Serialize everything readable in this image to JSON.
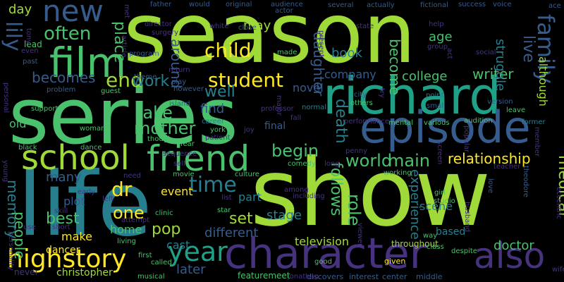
{
  "background": "#000000",
  "palette": {
    "yellow": "#fde725",
    "lime": "#a0da39",
    "green": "#4ac16d",
    "teal": "#1fa187",
    "cyan": "#277f8e",
    "blue": "#365c8d",
    "indigo": "#46327e",
    "purple": "#440154"
  },
  "words": [
    {
      "text": "season",
      "color": "#a0da39"
    },
    {
      "text": "show",
      "color": "#a0da39"
    },
    {
      "text": "series",
      "color": "#4ac16d"
    },
    {
      "text": "life",
      "color": "#277f8e"
    },
    {
      "text": "richard",
      "color": "#1fa187"
    },
    {
      "text": "episode",
      "color": "#365c8d"
    },
    {
      "text": "character",
      "color": "#46327e"
    },
    {
      "text": "school",
      "color": "#a0da39"
    },
    {
      "text": "friend",
      "color": "#4ac16d"
    },
    {
      "text": "film",
      "color": "#4ac16d"
    },
    {
      "text": "new",
      "color": "#365c8d"
    },
    {
      "text": "also",
      "color": "#46327e"
    },
    {
      "text": "family",
      "color": "#365c8d"
    },
    {
      "text": "highstory",
      "color": "#fde725"
    },
    {
      "text": "year",
      "color": "#1fa187"
    },
    {
      "text": "student",
      "color": "#fde725"
    },
    {
      "text": "end",
      "color": "#a0da39"
    },
    {
      "text": "often",
      "color": "#4ac16d"
    },
    {
      "text": "child",
      "color": "#fde725"
    },
    {
      "text": "time",
      "color": "#277f8e"
    },
    {
      "text": "dr",
      "color": "#fde725"
    },
    {
      "text": "mother",
      "color": "#4ac16d"
    },
    {
      "text": "work",
      "color": "#277f8e"
    },
    {
      "text": "becomes",
      "color": "#365c8d"
    },
    {
      "text": "take",
      "color": "#4ac16d"
    },
    {
      "text": "begin",
      "color": "#4ac16d"
    },
    {
      "text": "world",
      "color": "#4ac16d"
    },
    {
      "text": "main",
      "color": "#4ac16d"
    },
    {
      "text": "relationship",
      "color": "#fde725"
    },
    {
      "text": "writer",
      "color": "#4ac16d"
    },
    {
      "text": "doctor",
      "color": "#4ac16d"
    },
    {
      "text": "medical",
      "color": "#a0da39"
    },
    {
      "text": "lily",
      "color": "#365c8d"
    },
    {
      "text": "place",
      "color": "#4ac16d"
    },
    {
      "text": "around",
      "color": "#365c8d"
    },
    {
      "text": "daughter",
      "color": "#365c8d"
    },
    {
      "text": "become",
      "color": "#4ac16d"
    },
    {
      "text": "death",
      "color": "#277f8e"
    },
    {
      "text": "follows",
      "color": "#4ac16d"
    },
    {
      "text": "role",
      "color": "#4ac16d"
    },
    {
      "text": "memory",
      "color": "#277f8e"
    },
    {
      "text": "people",
      "color": "#4ac16d"
    },
    {
      "text": "best",
      "color": "#4ac16d"
    },
    {
      "text": "one",
      "color": "#fde725"
    },
    {
      "text": "pop",
      "color": "#a0da39"
    },
    {
      "text": "set",
      "color": "#a0da39"
    },
    {
      "text": "later",
      "color": "#365c8d"
    },
    {
      "text": "christopher",
      "color": "#a0da39"
    },
    {
      "text": "television",
      "color": "#a0da39"
    },
    {
      "text": "live",
      "color": "#365c8d"
    },
    {
      "text": "struggle",
      "color": "#277f8e"
    },
    {
      "text": "company",
      "color": "#365c8d"
    },
    {
      "text": "college",
      "color": "#4ac16d"
    },
    {
      "text": "book",
      "color": "#277f8e"
    },
    {
      "text": "age",
      "color": "#4ac16d"
    },
    {
      "text": "day",
      "color": "#a0da39"
    },
    {
      "text": "may",
      "color": "#a0da39"
    },
    {
      "text": "well",
      "color": "#277f8e"
    },
    {
      "text": "find",
      "color": "#365c8d"
    },
    {
      "text": "novel",
      "color": "#365c8d"
    },
    {
      "text": "stage",
      "color": "#277f8e"
    },
    {
      "text": "scene",
      "color": "#277f8e"
    },
    {
      "text": "experience",
      "color": "#277f8e"
    },
    {
      "text": "make",
      "color": "#fde725"
    },
    {
      "text": "home",
      "color": "#4ac16d"
    },
    {
      "text": "cast",
      "color": "#277f8e"
    },
    {
      "text": "different",
      "color": "#365c8d"
    },
    {
      "text": "event",
      "color": "#fde725"
    },
    {
      "text": "part",
      "color": "#277f8e"
    },
    {
      "text": "many",
      "color": "#365c8d"
    },
    {
      "text": "plot",
      "color": "#365c8d"
    },
    {
      "text": "old",
      "color": "#4ac16d"
    },
    {
      "text": "although",
      "color": "#a0da39"
    },
    {
      "text": "final",
      "color": "#365c8d"
    },
    {
      "text": "based",
      "color": "#277f8e"
    },
    {
      "text": "throughout",
      "color": "#a0da39"
    },
    {
      "text": "dancer",
      "color": "#fde725"
    },
    {
      "text": "featuremeet",
      "color": "#4ac16d"
    },
    {
      "text": "discovers",
      "color": "#365c8d"
    },
    {
      "text": "interest",
      "color": "#365c8d"
    },
    {
      "text": "center",
      "color": "#365c8d"
    },
    {
      "text": "middle",
      "color": "#365c8d"
    },
    {
      "text": "given",
      "color": "#fde725"
    },
    {
      "text": "father",
      "color": "#365c8d"
    },
    {
      "text": "would",
      "color": "#365c8d"
    },
    {
      "text": "original",
      "color": "#365c8d"
    },
    {
      "text": "audience",
      "color": "#365c8d"
    },
    {
      "text": "several",
      "color": "#365c8d"
    },
    {
      "text": "actually",
      "color": "#365c8d"
    },
    {
      "text": "fictional",
      "color": "#365c8d"
    },
    {
      "text": "success",
      "color": "#365c8d"
    },
    {
      "text": "voice",
      "color": "#365c8d"
    },
    {
      "text": "ace",
      "color": "#365c8d"
    },
    {
      "text": "lead",
      "color": "#4ac16d"
    },
    {
      "text": "past",
      "color": "#365c8d"
    },
    {
      "text": "made",
      "color": "#4ac16d"
    },
    {
      "text": "normal",
      "color": "#277f8e"
    },
    {
      "text": "city",
      "color": "#365c8d"
    },
    {
      "text": "others",
      "color": "#4ac16d"
    },
    {
      "text": "point",
      "color": "#277f8e"
    },
    {
      "text": "small",
      "color": "#365c8d"
    },
    {
      "text": "version",
      "color": "#365c8d"
    },
    {
      "text": "leave",
      "color": "#4ac16d"
    },
    {
      "text": "former",
      "color": "#277f8e"
    },
    {
      "text": "woman",
      "color": "#4ac16d"
    },
    {
      "text": "dance",
      "color": "#4ac16d"
    },
    {
      "text": "career",
      "color": "#277f8e"
    },
    {
      "text": "york",
      "color": "#4ac16d"
    },
    {
      "text": "joy",
      "color": "#46327e"
    },
    {
      "text": "patient",
      "color": "#46327e"
    },
    {
      "text": "mental",
      "color": "#4ac16d"
    },
    {
      "text": "various",
      "color": "#4ac16d"
    },
    {
      "text": "audition",
      "color": "#4ac16d"
    },
    {
      "text": "performance",
      "color": "#46327e"
    },
    {
      "text": "island",
      "color": "#365c8d"
    },
    {
      "text": "theme",
      "color": "#365c8d"
    },
    {
      "text": "problem",
      "color": "#365c8d"
    },
    {
      "text": "support",
      "color": "#4ac16d"
    },
    {
      "text": "guest",
      "color": "#4ac16d"
    },
    {
      "text": "however",
      "color": "#365c8d"
    },
    {
      "text": "play",
      "color": "#365c8d"
    },
    {
      "text": "return",
      "color": "#46327e"
    },
    {
      "text": "program",
      "color": "#365c8d"
    },
    {
      "text": "though",
      "color": "#4ac16d"
    },
    {
      "text": "black",
      "color": "#4ac16d"
    },
    {
      "text": "fear",
      "color": "#4ac16d"
    },
    {
      "text": "movie",
      "color": "#4ac16d"
    },
    {
      "text": "culture",
      "color": "#4ac16d"
    },
    {
      "text": "comedy",
      "color": "#4ac16d"
    },
    {
      "text": "working",
      "color": "#4ac16d"
    },
    {
      "text": "girl",
      "color": "#4ac16d"
    },
    {
      "text": "studio",
      "color": "#4ac16d"
    },
    {
      "text": "way",
      "color": "#4ac16d"
    },
    {
      "text": "clinic",
      "color": "#4ac16d"
    },
    {
      "text": "star",
      "color": "#4ac16d"
    },
    {
      "text": "living",
      "color": "#4ac16d"
    },
    {
      "text": "called",
      "color": "#4ac16d"
    },
    {
      "text": "first",
      "color": "#4ac16d"
    },
    {
      "text": "musical",
      "color": "#4ac16d"
    },
    {
      "text": "good",
      "color": "#4ac16d"
    },
    {
      "text": "class",
      "color": "#4ac16d"
    },
    {
      "text": "despite",
      "color": "#4ac16d"
    },
    {
      "text": "love",
      "color": "#365c8d"
    },
    {
      "text": "theodore",
      "color": "#365c8d"
    },
    {
      "text": "eccentric",
      "color": "#46327e"
    },
    {
      "text": "teacher",
      "color": "#46327e"
    },
    {
      "text": "early",
      "color": "#46327e"
    },
    {
      "text": "left",
      "color": "#46327e"
    },
    {
      "text": "skill",
      "color": "#46327e"
    },
    {
      "text": "short",
      "color": "#46327e"
    },
    {
      "text": "use",
      "color": "#46327e"
    },
    {
      "text": "never",
      "color": "#46327e"
    },
    {
      "text": "personality",
      "color": "#46327e"
    },
    {
      "text": "young",
      "color": "#46327e"
    },
    {
      "text": "personal",
      "color": "#46327e"
    },
    {
      "text": "even",
      "color": "#46327e"
    },
    {
      "text": "tony",
      "color": "#46327e"
    },
    {
      "text": "director",
      "color": "#46327e"
    },
    {
      "text": "surgery",
      "color": "#46327e"
    },
    {
      "text": "white",
      "color": "#46327e"
    },
    {
      "text": "close",
      "color": "#365c8d"
    },
    {
      "text": "actor",
      "color": "#365c8d"
    },
    {
      "text": "state",
      "color": "#46327e"
    },
    {
      "text": "help",
      "color": "#46327e"
    },
    {
      "text": "group",
      "color": "#46327e"
    },
    {
      "text": "social",
      "color": "#46327e"
    },
    {
      "text": "act",
      "color": "#46327e"
    },
    {
      "text": "present",
      "color": "#46327e"
    },
    {
      "text": "professor",
      "color": "#46327e"
    },
    {
      "text": "major",
      "color": "#46327e"
    },
    {
      "text": "try",
      "color": "#46327e"
    },
    {
      "text": "penny",
      "color": "#46327e"
    },
    {
      "text": "long",
      "color": "#46327e"
    },
    {
      "text": "among",
      "color": "#46327e"
    },
    {
      "text": "including",
      "color": "#46327e"
    },
    {
      "text": "viewer",
      "color": "#46327e"
    },
    {
      "text": "husband",
      "color": "#46327e"
    },
    {
      "text": "jonathan",
      "color": "#46327e"
    },
    {
      "text": "screen",
      "color": "#46327e"
    },
    {
      "text": "member",
      "color": "#46327e"
    },
    {
      "text": "popular",
      "color": "#46327e"
    },
    {
      "text": "need",
      "color": "#46327e"
    },
    {
      "text": "attempt",
      "color": "#46327e"
    },
    {
      "text": "sequence",
      "color": "#46327e"
    },
    {
      "text": "self",
      "color": "#46327e"
    },
    {
      "text": "list",
      "color": "#46327e"
    },
    {
      "text": "fall",
      "color": "#46327e"
    },
    {
      "text": "wife",
      "color": "#46327e"
    },
    {
      "text": "met",
      "color": "#46327e"
    },
    {
      "text": "article",
      "color": "#46327e"
    },
    {
      "text": "like",
      "color": "#46327e"
    }
  ]
}
